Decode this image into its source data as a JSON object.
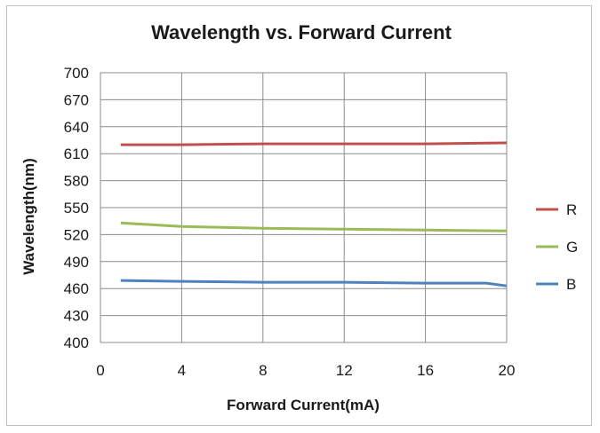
{
  "chart_data": {
    "type": "line",
    "title": "Wavelength vs. Forward Current",
    "xlabel": "Forward Current(mA)",
    "ylabel": "Wavelength(nm)",
    "xlim": [
      0,
      20
    ],
    "ylim": [
      400,
      700
    ],
    "x_ticks": [
      0,
      4,
      8,
      12,
      16,
      20
    ],
    "y_ticks": [
      400,
      430,
      460,
      490,
      520,
      550,
      580,
      610,
      640,
      670,
      700
    ],
    "grid": true,
    "legend_position": "right",
    "series": [
      {
        "name": "R",
        "color": "#c0504d",
        "x": [
          1,
          4,
          8,
          12,
          16,
          20
        ],
        "y": [
          620,
          620,
          621,
          621,
          621,
          622
        ]
      },
      {
        "name": "G",
        "color": "#9bbb59",
        "x": [
          1,
          4,
          8,
          12,
          16,
          20
        ],
        "y": [
          533,
          529,
          527,
          526,
          525,
          524
        ]
      },
      {
        "name": "B",
        "color": "#4f81bd",
        "x": [
          1,
          4,
          8,
          12,
          16,
          19,
          20
        ],
        "y": [
          469,
          468,
          467,
          467,
          466,
          466,
          463
        ]
      }
    ]
  }
}
